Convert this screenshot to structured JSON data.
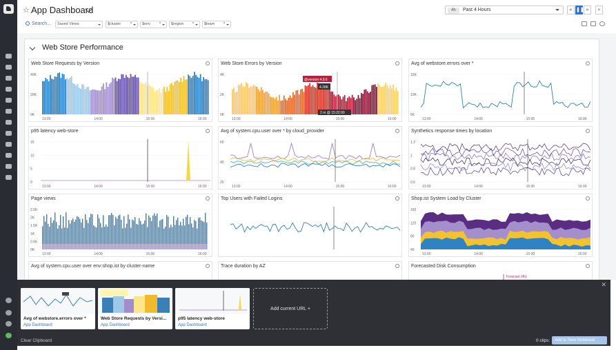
{
  "header": {
    "title": "App Dashboard",
    "time_badge": "4h",
    "time_label": "Past 4 Hours",
    "search_label": "Search...",
    "template_vars": [
      {
        "name": "Saved Views",
        "value": ""
      },
      {
        "name": "$cluster",
        "value": "*"
      },
      {
        "name": "$env",
        "value": "*"
      },
      {
        "name": "$region",
        "value": "*"
      },
      {
        "name": "$team",
        "value": "*"
      }
    ]
  },
  "group": {
    "title": "Web Store Performance"
  },
  "widgets": [
    {
      "title": "Web Store Requests by Version",
      "y_ticks": [
        "40K",
        "20K",
        "0K"
      ],
      "x_ticks": [
        "13:00",
        "14:00",
        "15:00",
        "16:00"
      ]
    },
    {
      "title": "Web Store Errors by Version",
      "y_ticks": [
        "4K",
        "2K",
        "0K"
      ],
      "x_ticks": [
        "13:00",
        "14:00",
        "15:00",
        "16:00"
      ],
      "tooltip": {
        "series": "@version:4.9.6",
        "value": "4.28K",
        "time": "2 m @ 15:22:00"
      }
    },
    {
      "title": "Avg of webstore.errors over *",
      "y_ticks": [
        "15K",
        "10K",
        "5K"
      ],
      "x_ticks": [
        "13:00",
        "14:00",
        "15:00",
        "16:00"
      ]
    },
    {
      "title": "p95 latency web-store",
      "y_ticks": [
        "15",
        "10",
        "5",
        "0"
      ],
      "x_ticks": [
        "13:00",
        "14:00",
        "15:00",
        "16:00"
      ]
    },
    {
      "title": "Avg of system.cpu.user over * by cloud_provider",
      "y_ticks": [
        "60",
        "40",
        "20"
      ],
      "x_ticks": [
        "13:00",
        "14:00",
        "15:00",
        "16:00"
      ]
    },
    {
      "title": "Synthetics response times by location",
      "y_ticks": [
        "1.2",
        "1",
        "0.8",
        "0.6"
      ],
      "x_ticks": [
        "13:00",
        "14:00",
        "15:00",
        "16:00"
      ]
    },
    {
      "title": "Page views",
      "y_ticks": [
        "2.5K",
        "2K",
        "1.5K",
        "1K",
        "0.5K",
        "0K"
      ],
      "x_ticks": [
        "13:00",
        "14:00",
        "15:00",
        "16:00"
      ]
    },
    {
      "title": "Top Users with Failed Logins",
      "y_ticks": [],
      "x_ticks": []
    },
    {
      "title": "Shop.ist System Load by Cluster",
      "y_ticks": [
        "160",
        "120",
        "80",
        "40"
      ],
      "x_ticks": [
        "13:00",
        "14:00",
        "15:00",
        "16:00"
      ]
    },
    {
      "title": "Avg of system.cpu.user over env:shop.ist by cluster-name",
      "y_ticks": [],
      "x_ticks": []
    },
    {
      "title": "Trace duration by AZ",
      "y_ticks": [],
      "x_ticks": []
    },
    {
      "title": "Forecasted Disk Consumption",
      "y_ticks": [],
      "x_ticks": [],
      "annotation": "Forecast (4h)"
    }
  ],
  "clipboard": {
    "cards": [
      {
        "title": "Avg of webstore.errors over *",
        "subtitle": "App Dashboard"
      },
      {
        "title": "Web Store Requests by Versi...",
        "subtitle": "App Dashboard"
      },
      {
        "title": "p95 latency web-store",
        "subtitle": "App Dashboard"
      }
    ],
    "add_label": "Add current URL +",
    "clear_label": "Clear Clipboard",
    "count_label": "0 clips:",
    "action_label": "Add to New Notebook"
  },
  "colors": {
    "accent": "#3970c6",
    "nav_bg": "#2a2c33",
    "clipboard_bg": "#2e3036"
  }
}
